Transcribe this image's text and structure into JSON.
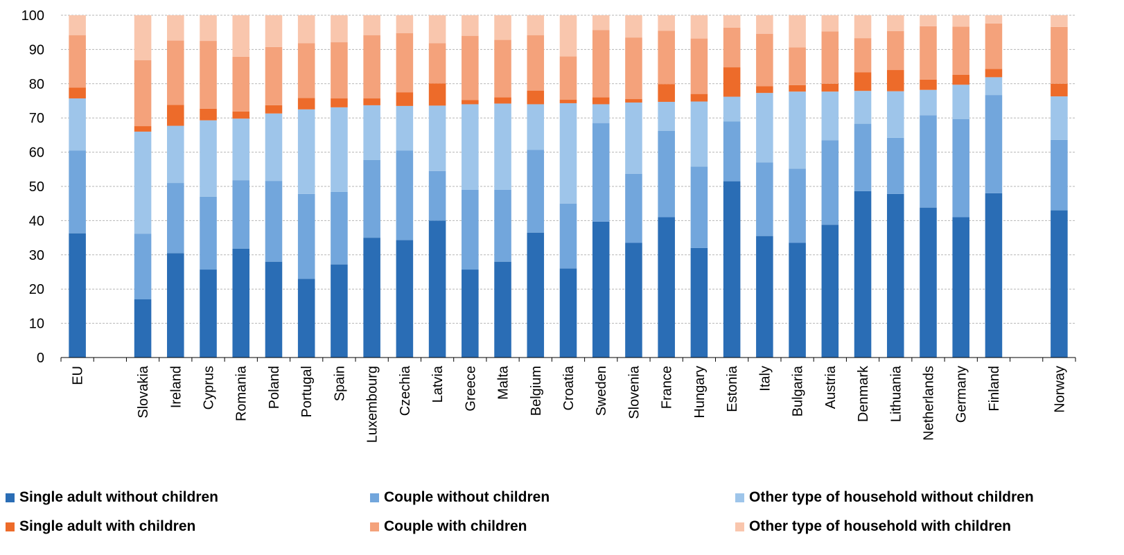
{
  "chart_data": {
    "type": "bar",
    "stacked": true,
    "orientation": "vertical",
    "ylim": [
      0,
      100
    ],
    "yticks": [
      0,
      10,
      20,
      30,
      40,
      50,
      60,
      70,
      80,
      90,
      100
    ],
    "grid": true,
    "legend_position": "bottom",
    "categories": [
      "EU",
      "",
      "Slovakia",
      "Ireland",
      "Cyprus",
      "Romania",
      "Poland",
      "Portugal",
      "Spain",
      "Luxembourg",
      "Czechia",
      "Latvia",
      "Greece",
      "Malta",
      "Belgium",
      "Croatia",
      "Sweden",
      "Slovenia",
      "France",
      "Hungary",
      "Estonia",
      "Italy",
      "Bulgaria",
      "Austria",
      "Denmark",
      "Lithuania",
      "Netherlands",
      "Germany",
      "Finland",
      "",
      "Norway"
    ],
    "series": [
      {
        "name": "Single adult without children",
        "color": "#2a6db5",
        "values": [
          36.3,
          null,
          17.0,
          30.5,
          25.7,
          31.8,
          28.0,
          23.0,
          27.2,
          35.0,
          34.3,
          40.0,
          25.7,
          28.0,
          36.5,
          26.0,
          39.7,
          33.5,
          41.0,
          32.0,
          51.5,
          35.5,
          33.5,
          38.8,
          48.6,
          47.8,
          43.8,
          41.0,
          48.0,
          null,
          43.0
        ]
      },
      {
        "name": "Couple without children",
        "color": "#72a6dc",
        "values": [
          24.2,
          null,
          19.2,
          20.5,
          21.3,
          20.0,
          23.6,
          24.8,
          21.2,
          22.7,
          26.2,
          14.5,
          23.3,
          21.0,
          24.2,
          19.0,
          28.8,
          20.2,
          25.2,
          23.8,
          17.5,
          21.5,
          21.7,
          24.7,
          19.7,
          16.4,
          27.0,
          28.7,
          28.7,
          null,
          20.6
        ]
      },
      {
        "name": "Other type of household without children",
        "color": "#9ec5ea",
        "values": [
          15.2,
          null,
          29.8,
          16.7,
          22.3,
          18.0,
          19.7,
          24.7,
          24.7,
          16.0,
          13.0,
          19.1,
          25.0,
          25.2,
          13.3,
          29.3,
          5.5,
          20.8,
          8.5,
          19.0,
          7.2,
          20.3,
          22.5,
          14.2,
          9.6,
          13.6,
          7.4,
          10.0,
          5.2,
          null,
          12.7
        ]
      },
      {
        "name": "Single adult with children",
        "color": "#ed6b2a",
        "values": [
          3.2,
          null,
          1.6,
          6.1,
          3.4,
          2.1,
          2.4,
          3.3,
          2.6,
          2.0,
          4.0,
          6.5,
          1.2,
          1.8,
          4.0,
          1.0,
          2.0,
          1.0,
          5.2,
          2.2,
          8.6,
          2.0,
          1.9,
          2.3,
          5.4,
          6.2,
          3.0,
          2.9,
          2.4,
          null,
          3.7
        ]
      },
      {
        "name": "Couple with children",
        "color": "#f4a27b",
        "values": [
          15.3,
          null,
          19.3,
          18.8,
          19.8,
          16.0,
          17.0,
          16.0,
          16.4,
          18.5,
          17.3,
          11.7,
          18.8,
          16.8,
          16.2,
          12.7,
          19.7,
          18.0,
          15.6,
          16.2,
          11.6,
          15.3,
          11.0,
          15.3,
          10.0,
          11.4,
          15.6,
          14.1,
          13.3,
          null,
          16.6
        ]
      },
      {
        "name": "Other type of household with children",
        "color": "#f9c6ad",
        "values": [
          5.8,
          null,
          13.1,
          7.4,
          7.5,
          12.1,
          9.3,
          8.2,
          7.9,
          5.8,
          5.2,
          8.2,
          6.0,
          7.2,
          5.8,
          12.0,
          4.3,
          6.5,
          4.5,
          6.8,
          3.6,
          5.4,
          9.4,
          4.7,
          6.7,
          4.6,
          3.2,
          3.3,
          2.4,
          null,
          3.4
        ]
      }
    ]
  }
}
